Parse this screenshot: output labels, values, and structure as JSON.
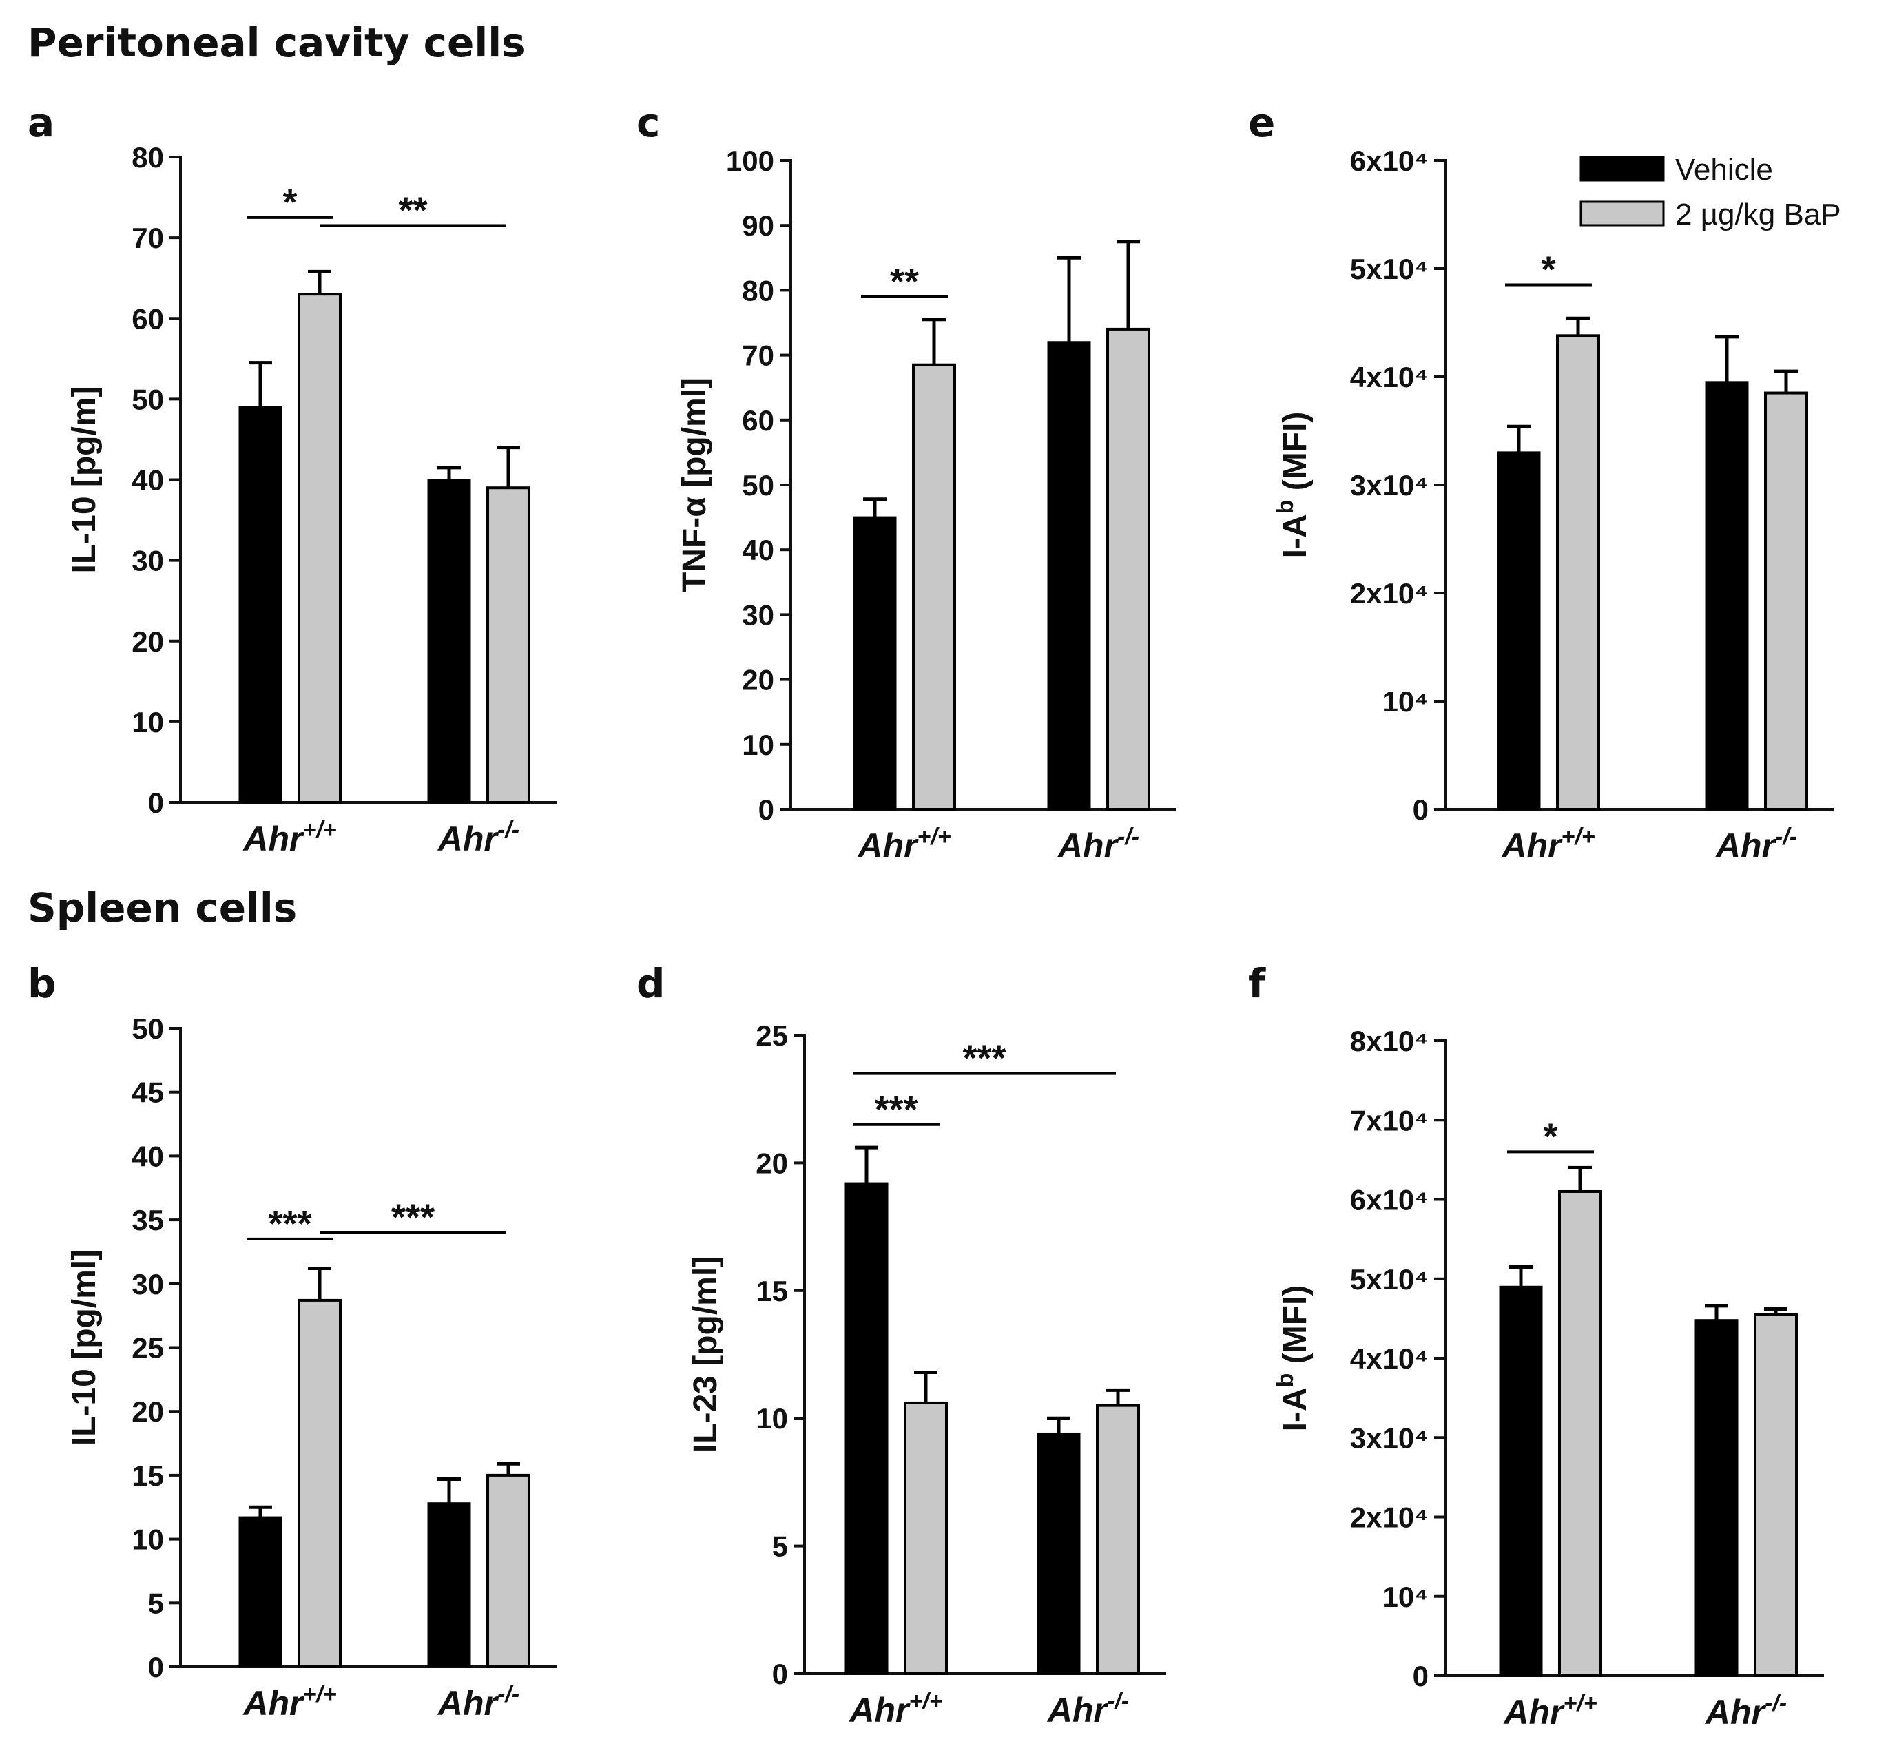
{
  "section_titles": {
    "top": "Peritoneal cavity cells",
    "bottom": "Spleen cells"
  },
  "legend": {
    "vehicle_label": "Vehicle",
    "bap_label": "2 µg/kg BaP",
    "vehicle_color": "#000000",
    "bap_color": "#c8c8c8"
  },
  "chart_data": [
    {
      "panel": "a",
      "type": "bar",
      "ylabel": "IL-10 [pg/m]",
      "ylim": [
        0,
        80
      ],
      "yticks": [
        "0",
        "10",
        "20",
        "30",
        "40",
        "50",
        "60",
        "70",
        "80"
      ],
      "categories": [
        "Ahr",
        "Ahr"
      ],
      "category_sup": [
        "+/+",
        "-/-"
      ],
      "series": [
        {
          "name": "Vehicle",
          "values": [
            49,
            40
          ],
          "errors": [
            5.5,
            1.5
          ]
        },
        {
          "name": "2 µg/kg BaP",
          "values": [
            63,
            39
          ],
          "errors": [
            2.8,
            5.0
          ]
        }
      ],
      "significance": [
        {
          "label": "*",
          "from": "0:Vehicle",
          "to": "0:2 µg/kg BaP",
          "level": 72.5
        },
        {
          "label": "**",
          "from": "0:2 µg/kg BaP",
          "to": "1:center",
          "level": 71.5
        }
      ]
    },
    {
      "panel": "c",
      "type": "bar",
      "ylabel": "TNF-α [pg/ml]",
      "ylim": [
        0,
        100
      ],
      "yticks": [
        "0",
        "10",
        "20",
        "30",
        "40",
        "50",
        "60",
        "70",
        "80",
        "90",
        "100"
      ],
      "categories": [
        "Ahr",
        "Ahr"
      ],
      "category_sup": [
        "+/+",
        "-/-"
      ],
      "series": [
        {
          "name": "Vehicle",
          "values": [
            45,
            72
          ],
          "errors": [
            2.8,
            13
          ]
        },
        {
          "name": "2 µg/kg BaP",
          "values": [
            68.5,
            74
          ],
          "errors": [
            7,
            13.5
          ]
        }
      ],
      "significance": [
        {
          "label": "**",
          "from": "0:Vehicle",
          "to": "0:2 µg/kg BaP",
          "level": 79
        }
      ]
    },
    {
      "panel": "e",
      "type": "bar",
      "ylabel": "I-Ab (MFI)",
      "ylim": [
        0,
        60000
      ],
      "yticks": [
        "0",
        "10⁴",
        "2x10⁴",
        "3x10⁴",
        "4x10⁴",
        "5x10⁴",
        "6x10⁴"
      ],
      "categories": [
        "Ahr",
        "Ahr"
      ],
      "category_sup": [
        "+/+",
        "-/-"
      ],
      "series": [
        {
          "name": "Vehicle",
          "values": [
            33000,
            39500
          ],
          "errors": [
            2400,
            4200
          ]
        },
        {
          "name": "2 µg/kg BaP",
          "values": [
            43800,
            38500
          ],
          "errors": [
            1600,
            2000
          ]
        }
      ],
      "significance": [
        {
          "label": "*",
          "from": "0:Vehicle",
          "to": "0:2 µg/kg BaP",
          "level": 48500
        }
      ],
      "has_legend": true
    },
    {
      "panel": "b",
      "type": "bar",
      "ylabel": "IL-10 [pg/ml]",
      "ylim": [
        0,
        50
      ],
      "yticks": [
        "0",
        "5",
        "10",
        "15",
        "20",
        "25",
        "30",
        "35",
        "40",
        "45",
        "50"
      ],
      "categories": [
        "Ahr",
        "Ahr"
      ],
      "category_sup": [
        "+/+",
        "-/-"
      ],
      "series": [
        {
          "name": "Vehicle",
          "values": [
            11.7,
            12.8
          ],
          "errors": [
            0.8,
            1.9
          ]
        },
        {
          "name": "2 µg/kg BaP",
          "values": [
            28.7,
            15
          ],
          "errors": [
            2.5,
            0.9
          ]
        }
      ],
      "significance": [
        {
          "label": "***",
          "from": "0:Vehicle",
          "to": "0:2 µg/kg BaP",
          "level": 33.5
        },
        {
          "label": "***",
          "from": "0:2 µg/kg BaP",
          "to": "1:center",
          "level": 34
        }
      ]
    },
    {
      "panel": "d",
      "type": "bar",
      "ylabel": "IL-23 [pg/ml]",
      "ylim": [
        0,
        25
      ],
      "yticks": [
        "0",
        "5",
        "10",
        "15",
        "20",
        "25"
      ],
      "categories": [
        "Ahr",
        "Ahr"
      ],
      "category_sup": [
        "+/+",
        "-/-"
      ],
      "series": [
        {
          "name": "Vehicle",
          "values": [
            19.2,
            9.4
          ],
          "errors": [
            1.4,
            0.6
          ]
        },
        {
          "name": "2 µg/kg BaP",
          "values": [
            10.6,
            10.5
          ],
          "errors": [
            1.2,
            0.6
          ]
        }
      ],
      "significance": [
        {
          "label": "***",
          "from": "0:Vehicle",
          "to": "0:2 µg/kg BaP",
          "level": 21.5
        },
        {
          "label": "***",
          "from": "0:Vehicle",
          "to": "1:center",
          "level": 23.5
        }
      ]
    },
    {
      "panel": "f",
      "type": "bar",
      "ylabel": "I-Ab (MFI)",
      "ylim": [
        0,
        80000
      ],
      "yticks": [
        "0",
        "10⁴",
        "2x10⁴",
        "3x10⁴",
        "4x10⁴",
        "5x10⁴",
        "6x10⁴",
        "7x10⁴",
        "8x10⁴"
      ],
      "categories": [
        "Ahr",
        "Ahr"
      ],
      "category_sup": [
        "+/+",
        "-/-"
      ],
      "series": [
        {
          "name": "Vehicle",
          "values": [
            49000,
            44800
          ],
          "errors": [
            2500,
            1800
          ]
        },
        {
          "name": "2 µg/kg BaP",
          "values": [
            61000,
            45500
          ],
          "errors": [
            3000,
            700
          ]
        }
      ],
      "significance": [
        {
          "label": "*",
          "from": "0:Vehicle",
          "to": "0:2 µg/kg BaP",
          "level": 66000
        }
      ]
    }
  ]
}
